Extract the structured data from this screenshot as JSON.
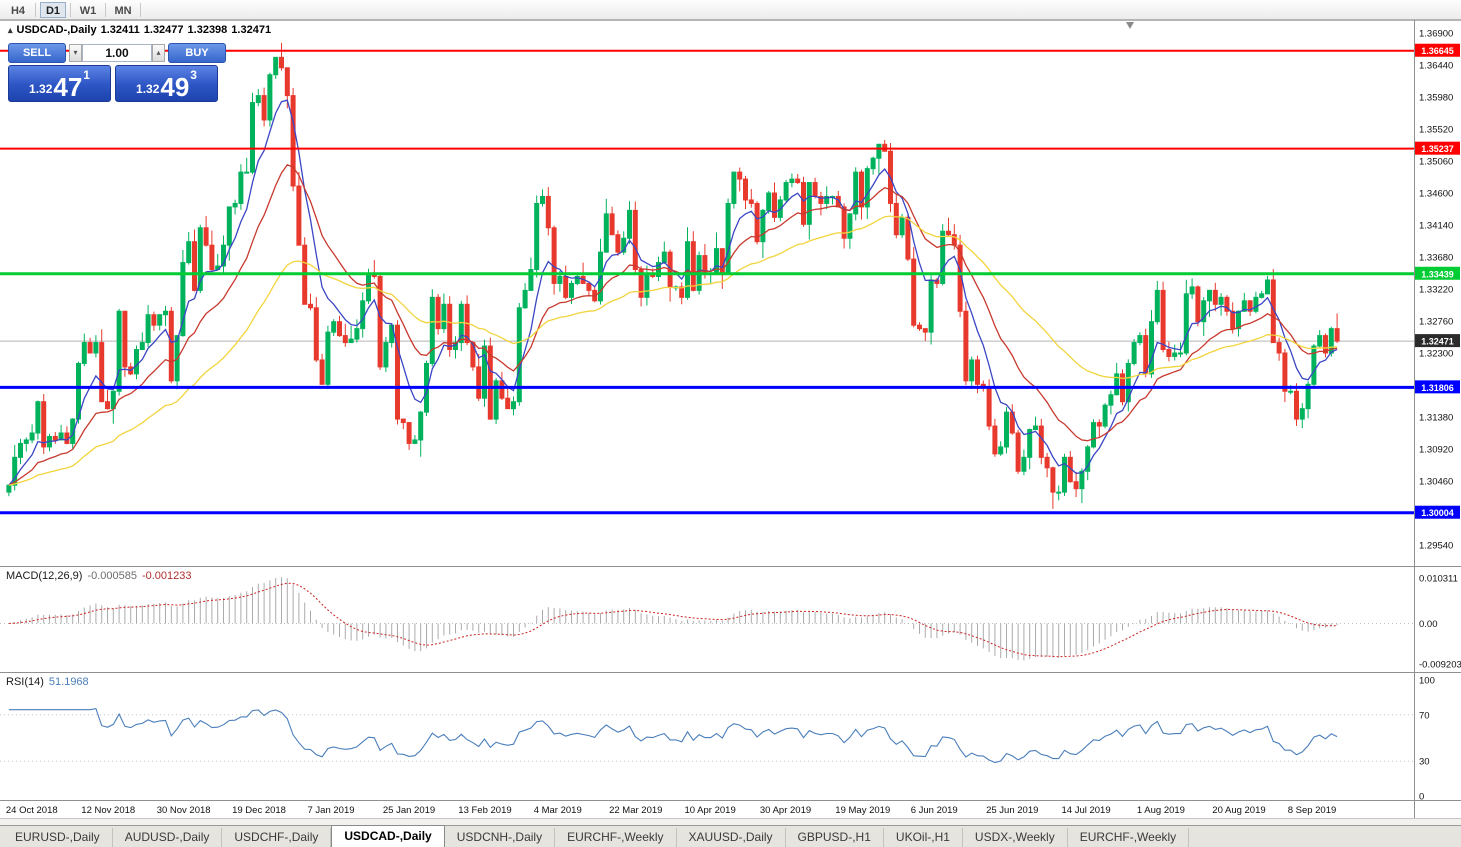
{
  "window": {
    "toolbar": {
      "timeframes": [
        {
          "label": "H4",
          "active": false
        },
        {
          "label": "D1",
          "active": true
        },
        {
          "label": "W1",
          "active": false
        },
        {
          "label": "MN",
          "active": false
        }
      ]
    },
    "tabs": {
      "items": [
        "EURUSD-,Daily",
        "AUDUSD-,Daily",
        "USDCHF-,Daily",
        "USDCAD-,Daily",
        "USDCNH-,Daily",
        "EURCHF-,Weekly",
        "XAUUSD-,Daily",
        "GBPUSD-,H1",
        "UKOil-,H1",
        "USDX-,Weekly",
        "EURCHF-,Weekly"
      ],
      "active_index": 3
    }
  },
  "icons": {
    "collapse": "▴",
    "volume_down": "▾",
    "volume_up": "▴"
  },
  "chart_header": {
    "symbol": "USDCAD-,Daily",
    "open": "1.32411",
    "high": "1.32477",
    "low": "1.32398",
    "close": "1.32471"
  },
  "one_click": {
    "sell_label": "SELL",
    "buy_label": "BUY",
    "volume": "1.00",
    "sell_price": {
      "base": "1.32",
      "pips": "47",
      "point": "1"
    },
    "buy_price": {
      "base": "1.32",
      "pips": "49",
      "point": "3"
    }
  },
  "chart_data": {
    "type": "candlestick",
    "title": "USDCAD-,Daily",
    "seed": 7,
    "colors": {
      "bull": "#00B25C",
      "bear": "#E8392D",
      "ma_fast": "#3A46C4",
      "ma_mid": "#C8392E",
      "ma_slow": "#F2D43D",
      "macd_hist": "#ABABAB",
      "macd_signal": "#CC2222",
      "rsi_line": "#4A7EBB",
      "current_price_bg": "#2B2B2B"
    },
    "y_axis": {
      "max": 1.369,
      "min": 1.2954,
      "step": 0.0046,
      "tick_labels": [
        "1.36900",
        "1.36440",
        "1.35980",
        "1.35520",
        "1.35060",
        "1.34600",
        "1.34140",
        "1.33680",
        "1.33220",
        "1.32760",
        "1.32300",
        "1.31840",
        "1.31380",
        "1.30920",
        "1.30460",
        "1.30000",
        "1.29540"
      ]
    },
    "levels": [
      {
        "price": 1.36645,
        "label": "1.36645",
        "color": "#FF0000",
        "width": 2
      },
      {
        "price": 1.35237,
        "label": "1.35237",
        "color": "#FF0000",
        "width": 2
      },
      {
        "price": 1.33439,
        "label": "1.33439",
        "color": "#00CC33",
        "width": 3
      },
      {
        "price": 1.31806,
        "label": "1.31806",
        "color": "#0000FF",
        "width": 3
      },
      {
        "price": 1.30004,
        "label": "1.30004",
        "color": "#0000FF",
        "width": 3
      }
    ],
    "current_price": {
      "value": 1.32471,
      "label": "1.32471"
    },
    "x_labels": [
      "24 Oct 2018",
      "12 Nov 2018",
      "30 Nov 2018",
      "19 Dec 2018",
      "7 Jan 2019",
      "25 Jan 2019",
      "13 Feb 2019",
      "4 Mar 2019",
      "22 Mar 2019",
      "10 Apr 2019",
      "30 Apr 2019",
      "19 May 2019",
      "6 Jun 2019",
      "25 Jun 2019",
      "14 Jul 2019",
      "1 Aug 2019",
      "20 Aug 2019",
      "8 Sep 2019"
    ],
    "x_label_bar_step": 13,
    "closes": [
      1.304,
      1.308,
      1.31,
      1.3105,
      1.3115,
      1.316,
      1.3095,
      1.311,
      1.3105,
      1.3115,
      1.31,
      1.3135,
      1.3215,
      1.3245,
      1.323,
      1.3245,
      1.316,
      1.315,
      1.3175,
      1.329,
      1.321,
      1.32,
      1.3235,
      1.3245,
      1.3285,
      1.327,
      1.3285,
      1.329,
      1.319,
      1.3255,
      1.336,
      1.339,
      1.332,
      1.341,
      1.3385,
      1.335,
      1.3355,
      1.3385,
      1.344,
      1.3445,
      1.349,
      1.349,
      1.359,
      1.36,
      1.3565,
      1.363,
      1.3655,
      1.364,
      1.36,
      1.347,
      1.3385,
      1.33,
      1.3295,
      1.322,
      1.3185,
      1.326,
      1.3275,
      1.3255,
      1.3245,
      1.325,
      1.3265,
      1.3305,
      1.3345,
      1.334,
      1.321,
      1.3245,
      1.327,
      1.3135,
      1.313,
      1.31,
      1.3105,
      1.3145,
      1.3215,
      1.331,
      1.3265,
      1.33,
      1.3235,
      1.3245,
      1.33,
      1.3245,
      1.321,
      1.3165,
      1.324,
      1.3135,
      1.319,
      1.3165,
      1.315,
      1.316,
      1.3295,
      1.332,
      1.335,
      1.3445,
      1.3455,
      1.341,
      1.333,
      1.334,
      1.331,
      1.333,
      1.334,
      1.333,
      1.332,
      1.3305,
      1.3375,
      1.343,
      1.34,
      1.3375,
      1.3395,
      1.3435,
      1.335,
      1.331,
      1.3345,
      1.334,
      1.336,
      1.3375,
      1.3325,
      1.3325,
      1.331,
      1.339,
      1.332,
      1.337,
      1.3345,
      1.3345,
      1.338,
      1.3345,
      1.3445,
      1.349,
      1.348,
      1.345,
      1.3445,
      1.339,
      1.3435,
      1.346,
      1.3425,
      1.345,
      1.3475,
      1.348,
      1.3475,
      1.3415,
      1.3475,
      1.3455,
      1.3445,
      1.3455,
      1.3455,
      1.344,
      1.3395,
      1.343,
      1.349,
      1.344,
      1.3495,
      1.351,
      1.353,
      1.352,
      1.3445,
      1.34,
      1.3425,
      1.3365,
      1.327,
      1.3265,
      1.326,
      1.3335,
      1.333,
      1.3405,
      1.34,
      1.3385,
      1.329,
      1.319,
      1.322,
      1.3185,
      1.318,
      1.3125,
      1.3085,
      1.3095,
      1.3145,
      1.3115,
      1.306,
      1.308,
      1.312,
      1.3125,
      1.308,
      1.3065,
      1.303,
      1.303,
      1.308,
      1.3045,
      1.3035,
      1.306,
      1.3095,
      1.313,
      1.3125,
      1.3155,
      1.317,
      1.32,
      1.316,
      1.3215,
      1.3245,
      1.3255,
      1.32,
      1.3275,
      1.332,
      1.3235,
      1.3225,
      1.323,
      1.323,
      1.3315,
      1.3325,
      1.3275,
      1.3305,
      1.332,
      1.33,
      1.331,
      1.329,
      1.3265,
      1.329,
      1.3305,
      1.329,
      1.331,
      1.3315,
      1.3335,
      1.3245,
      1.323,
      1.3175,
      1.3175,
      1.3135,
      1.315,
      1.3185,
      1.324,
      1.3255,
      1.323,
      1.3265,
      1.32471
    ],
    "moving_averages": [
      {
        "period": 7,
        "color_key": "ma_fast"
      },
      {
        "period": 18,
        "color_key": "ma_mid"
      },
      {
        "period": 45,
        "color_key": "ma_slow"
      }
    ],
    "indicators": {
      "macd": {
        "label": "MACD(12,26,9)",
        "value_main": "-0.000585",
        "value_signal": "-0.001233",
        "params": [
          12,
          26,
          9
        ],
        "axis": [
          "0.010311",
          "0.00",
          "-0.009203"
        ],
        "axis_values": [
          0.010311,
          0.0,
          -0.009203
        ]
      },
      "rsi": {
        "label": "RSI(14)",
        "value": "51.1968",
        "period": 14,
        "levels": [
          70,
          30
        ],
        "axis": [
          "100",
          "70",
          "30",
          "0"
        ],
        "axis_values": [
          100,
          70,
          30,
          0
        ]
      }
    }
  }
}
